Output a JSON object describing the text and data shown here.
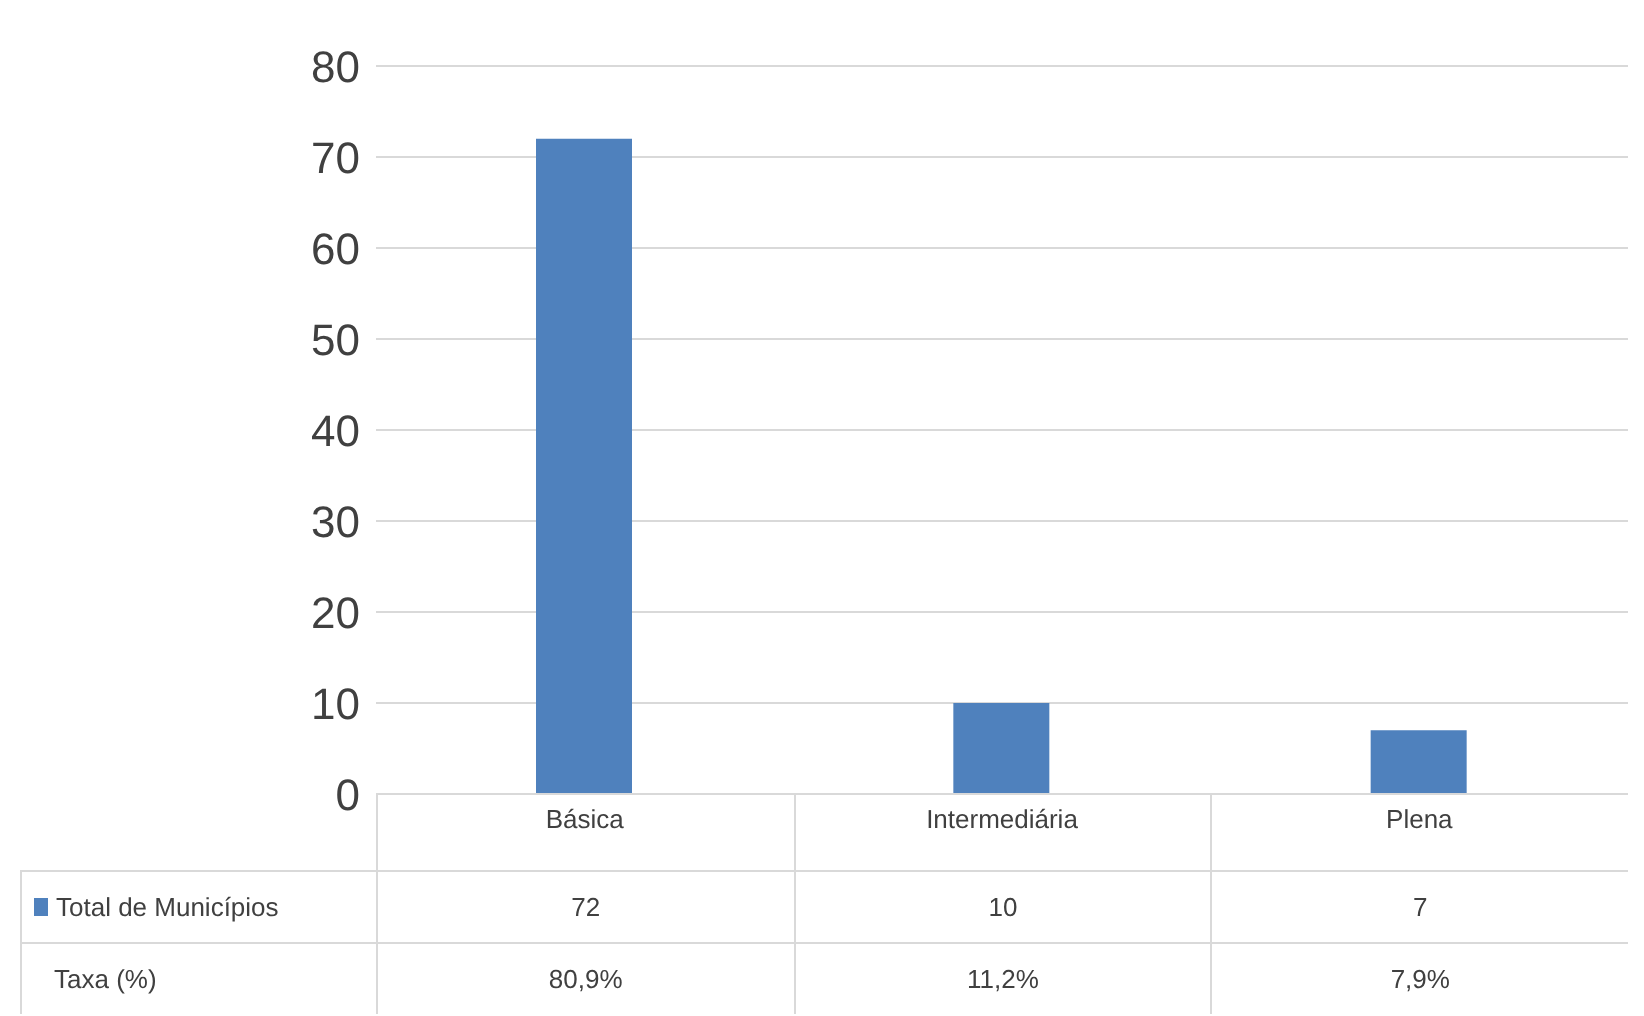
{
  "chart_data": {
    "type": "bar",
    "categories": [
      "Básica",
      "Intermediária",
      "Plena"
    ],
    "series": [
      {
        "name": "Total de Municípios",
        "color": "#4f81bd",
        "values": [
          72,
          10,
          7
        ]
      }
    ],
    "ylim": [
      0,
      80
    ],
    "yticks": [
      0,
      10,
      20,
      30,
      40,
      50,
      60,
      70,
      80
    ],
    "grid": "y",
    "legend": "bottom",
    "data_labels": true,
    "annotations": [
      "Taxa (%)",
      "80,9%",
      "11,2%",
      "7,9%"
    ]
  }
}
